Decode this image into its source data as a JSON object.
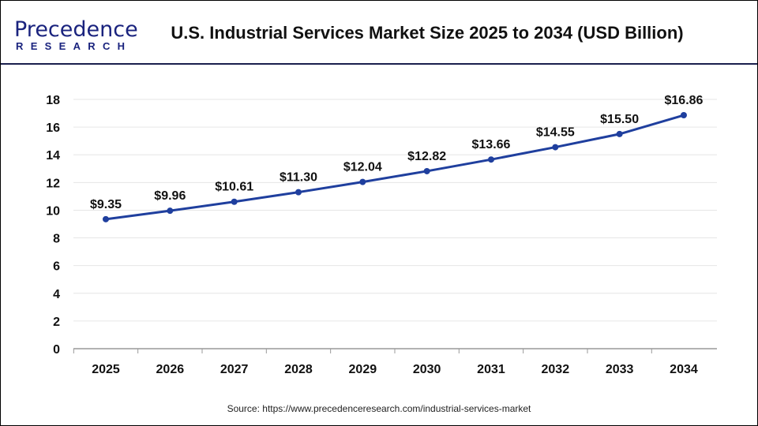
{
  "logo": {
    "main": "Precedence",
    "sub": "RESEARCH"
  },
  "chart_data": {
    "type": "line",
    "title": "U.S. Industrial Services Market Size 2025 to 2034 (USD Billion)",
    "categories": [
      "2025",
      "2026",
      "2027",
      "2028",
      "2029",
      "2030",
      "2031",
      "2032",
      "2033",
      "2034"
    ],
    "values": [
      9.35,
      9.96,
      10.61,
      11.3,
      12.04,
      12.82,
      13.66,
      14.55,
      15.5,
      16.86
    ],
    "data_labels": [
      "$9.35",
      "$9.96",
      "$10.61",
      "$11.30",
      "$12.04",
      "$12.82",
      "$13.66",
      "$14.55",
      "$15.50",
      "$16.86"
    ],
    "yticks": [
      "0",
      "2",
      "4",
      "6",
      "8",
      "10",
      "12",
      "14",
      "16",
      "18"
    ],
    "ylim": [
      0,
      18
    ],
    "grid": true,
    "line_color": "#1f3f9e"
  },
  "source": "Source: https://www.precedenceresearch.com/industrial-services-market"
}
